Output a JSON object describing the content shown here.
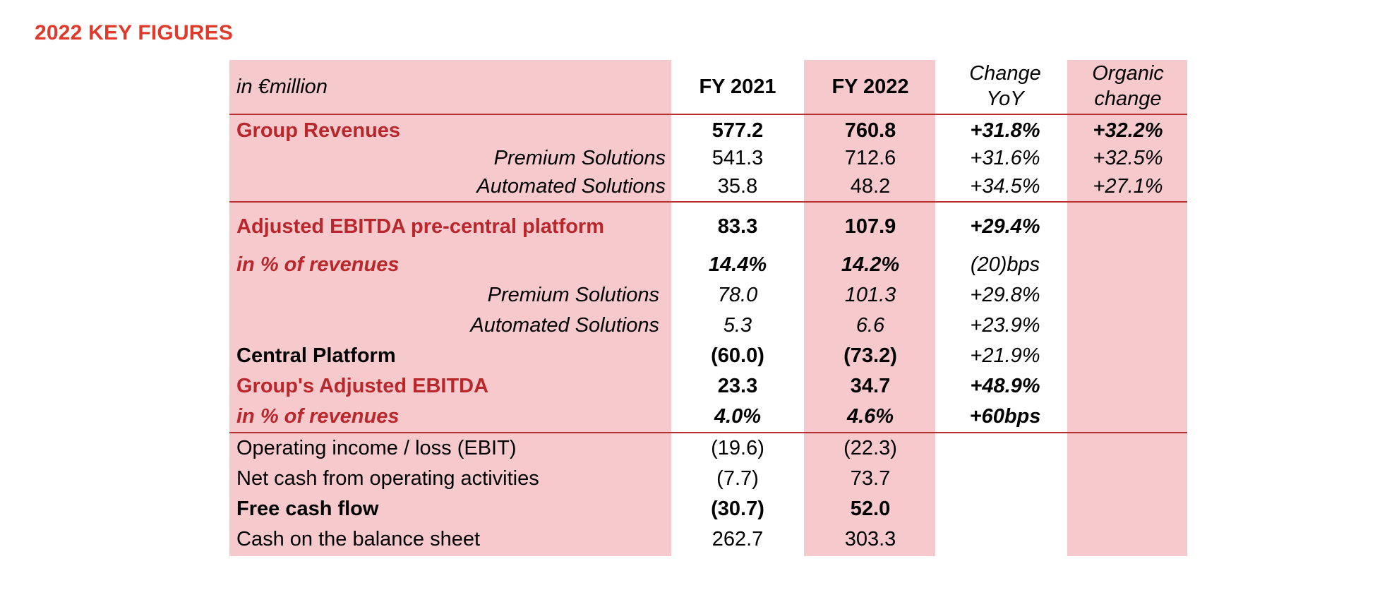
{
  "title": "2022 KEY FIGURES",
  "header": {
    "unit": "in €million",
    "fy2021": "FY 2021",
    "fy2022": "FY 2022",
    "change_line1": "Change",
    "change_line2": "YoY",
    "organic_line1": "Organic",
    "organic_line2": "change"
  },
  "rows": [
    {
      "label": "Group Revenues",
      "fy2021": "577.2",
      "fy2022": "760.8",
      "change": "+31.8%",
      "organic": "+32.2%"
    },
    {
      "label": "Premium Solutions",
      "fy2021": "541.3",
      "fy2022": "712.6",
      "change": "+31.6%",
      "organic": "+32.5%"
    },
    {
      "label": "Automated Solutions",
      "fy2021": "35.8",
      "fy2022": "48.2",
      "change": "+34.5%",
      "organic": "+27.1%"
    },
    {
      "label": "Adjusted EBITDA pre-central platform",
      "fy2021": "83.3",
      "fy2022": "107.9",
      "change": "+29.4%",
      "organic": ""
    },
    {
      "label": "in % of revenues",
      "fy2021": "14.4%",
      "fy2022": "14.2%",
      "change": "(20)bps",
      "organic": ""
    },
    {
      "label": "Premium Solutions",
      "fy2021": "78.0",
      "fy2022": "101.3",
      "change": "+29.8%",
      "organic": ""
    },
    {
      "label": "Automated Solutions",
      "fy2021": "5.3",
      "fy2022": "6.6",
      "change": "+23.9%",
      "organic": ""
    },
    {
      "label": "Central Platform",
      "fy2021": "(60.0)",
      "fy2022": "(73.2)",
      "change": "+21.9%",
      "organic": ""
    },
    {
      "label": "Group's Adjusted EBITDA",
      "fy2021": "23.3",
      "fy2022": "34.7",
      "change": "+48.9%",
      "organic": ""
    },
    {
      "label": "in % of revenues",
      "fy2021": "4.0%",
      "fy2022": "4.6%",
      "change": "+60bps",
      "organic": ""
    },
    {
      "label": "Operating income / loss (EBIT)",
      "fy2021": "(19.6)",
      "fy2022": "(22.3)",
      "change": "",
      "organic": ""
    },
    {
      "label": "Net cash from operating activities",
      "fy2021": "(7.7)",
      "fy2022": "73.7",
      "change": "",
      "organic": ""
    },
    {
      "label": "Free cash flow",
      "fy2021": "(30.7)",
      "fy2022": "52.0",
      "change": "",
      "organic": ""
    },
    {
      "label": "Cash on the balance sheet",
      "fy2021": "262.7",
      "fy2022": "303.3",
      "change": "",
      "organic": ""
    }
  ],
  "colors": {
    "title": "#e03a2c",
    "highlight_label": "#b8272c",
    "column_shading": "#f6cacc",
    "rule": "#b82f2f"
  }
}
